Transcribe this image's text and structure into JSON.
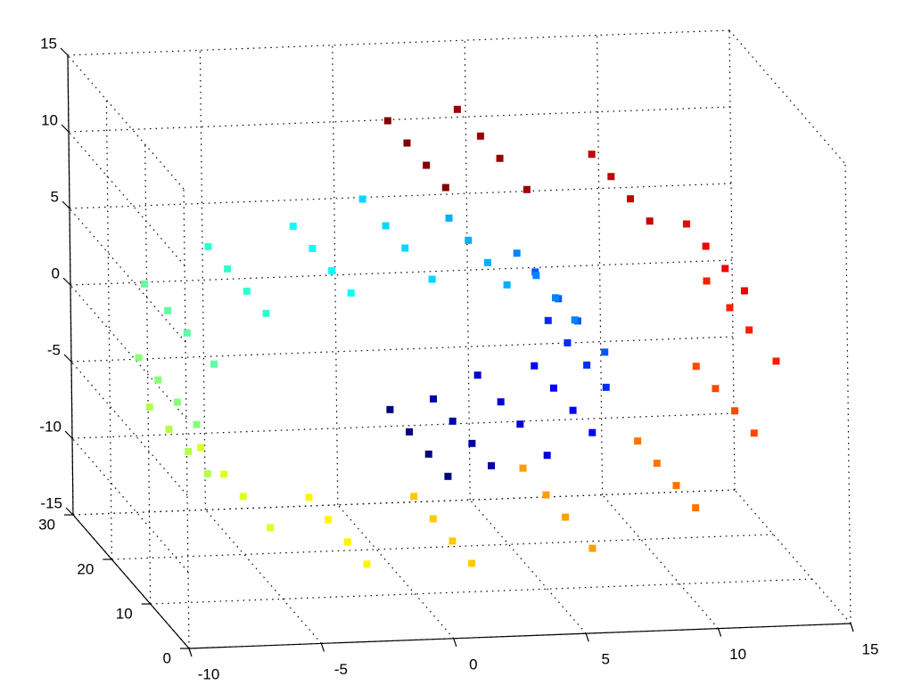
{
  "chart_data": {
    "type": "scatter3d",
    "colormap": "jet",
    "grid": true,
    "x": [
      0,
      0,
      0,
      0,
      1.93,
      1.93,
      1.93,
      1.93,
      3.9,
      3.9,
      3.9,
      3.9,
      5.47,
      5.47,
      5.47,
      5.47,
      6.3,
      6.3,
      6.3,
      6.3,
      6.12,
      6.12,
      6.12,
      6.12,
      4.86,
      4.86,
      4.86,
      4.86,
      2.6,
      2.6,
      2.6,
      2.6,
      -0.37,
      -0.37,
      -0.37,
      -0.37,
      -3.58,
      -3.58,
      -3.58,
      -3.58,
      -6.51,
      -6.51,
      -6.51,
      -6.51,
      -8.64,
      -8.64,
      -8.64,
      -8.64,
      -9.47,
      -9.47,
      -9.47,
      -9.47,
      -8.79,
      -8.79,
      -8.79,
      -8.79,
      -6.59,
      -6.59,
      -6.59,
      -6.59,
      -3.1,
      -3.1,
      -3.1,
      -3.1,
      1.15,
      1.15,
      1.15,
      1.15,
      5.57,
      5.57,
      5.57,
      5.57,
      9.34,
      9.34,
      9.34,
      9.34,
      11.87,
      11.87,
      11.87,
      11.87,
      12.59,
      12.59,
      12.59,
      12.59,
      11.28,
      11.28,
      11.28,
      11.28,
      8.02,
      8.02,
      8.02,
      8.02,
      3.25,
      3.25,
      3.25,
      3.25,
      0.04,
      0.04,
      0.04,
      0.04
    ],
    "y": [
      1,
      6,
      11,
      16,
      3,
      8,
      13,
      18,
      2,
      9,
      14,
      20,
      1,
      6,
      11,
      16,
      3,
      8,
      13,
      18,
      2,
      9,
      14,
      20,
      1,
      6,
      11,
      16,
      3,
      8,
      13,
      18,
      2,
      9,
      14,
      20,
      1,
      6,
      11,
      16,
      3,
      8,
      13,
      18,
      2,
      9,
      14,
      20,
      1,
      6,
      11,
      16,
      3,
      8,
      13,
      18,
      2,
      9,
      14,
      20,
      1,
      6,
      11,
      16,
      3,
      8,
      13,
      18,
      2,
      9,
      14,
      20,
      1,
      6,
      11,
      16,
      3,
      8,
      13,
      18,
      2,
      9,
      14,
      20,
      1,
      6,
      11,
      16,
      3,
      8,
      13,
      18,
      2,
      9,
      14,
      20,
      1,
      6,
      11,
      16
    ],
    "z": [
      -4.71,
      -4.71,
      -4.71,
      -4.71,
      -4.72,
      -4.72,
      -4.72,
      -4.72,
      -3.88,
      -3.88,
      -3.88,
      -3.88,
      -2.21,
      -2.21,
      -2.21,
      -2.21,
      0.11,
      0.11,
      0.11,
      0.11,
      2.71,
      2.71,
      2.71,
      2.71,
      5.18,
      5.18,
      5.18,
      5.18,
      7.04,
      7.04,
      7.04,
      7.04,
      7.89,
      7.89,
      7.89,
      7.89,
      7.49,
      7.49,
      7.49,
      7.49,
      5.77,
      5.77,
      5.77,
      5.77,
      2.89,
      2.89,
      2.89,
      2.89,
      -0.71,
      -0.71,
      -0.71,
      -0.71,
      -4.55,
      -4.55,
      -4.55,
      -4.55,
      -7.92,
      -7.92,
      -7.92,
      -7.92,
      -10.24,
      -10.24,
      -10.24,
      -10.24,
      -11.04,
      -11.04,
      -11.04,
      -11.04,
      -10.06,
      -10.06,
      -10.06,
      -10.06,
      -7.37,
      -7.37,
      -7.37,
      -7.37,
      -3.24,
      -3.24,
      -3.24,
      -3.24,
      1.7,
      1.7,
      1.7,
      1.7,
      6.67,
      6.67,
      6.67,
      6.67,
      10.85,
      10.85,
      10.85,
      10.85,
      13.51,
      13.51,
      13.51,
      13.51,
      14.14,
      14.14,
      14.14,
      14.14
    ],
    "xlim": [
      -10,
      15
    ],
    "ylim": [
      0,
      30
    ],
    "zlim": [
      -15,
      15
    ],
    "xticks": [
      -10,
      -5,
      0,
      5,
      10,
      15
    ],
    "yticks": [
      0,
      10,
      20,
      30
    ],
    "zticks": [
      -15,
      -10,
      -5,
      0,
      5,
      10,
      15
    ]
  }
}
